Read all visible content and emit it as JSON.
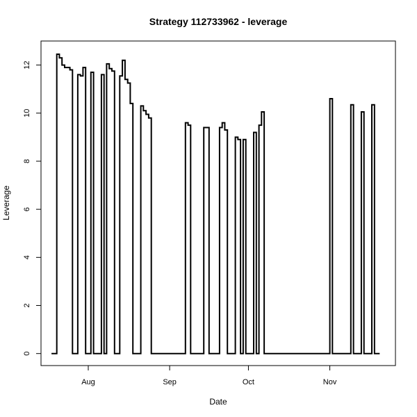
{
  "chart_data": {
    "type": "line",
    "title": "Strategy 112733962 - leverage",
    "xlabel": "Date",
    "ylabel": "Leverage",
    "xlim": [
      "2014-07-14",
      "2014-11-26"
    ],
    "ylim": [
      -0.5,
      13.0
    ],
    "x_ticks": [
      {
        "label": "Aug",
        "date": "2014-08-01"
      },
      {
        "label": "Sep",
        "date": "2014-09-01"
      },
      {
        "label": "Oct",
        "date": "2014-10-01"
      },
      {
        "label": "Nov",
        "date": "2014-11-01"
      }
    ],
    "y_ticks": [
      0,
      2,
      4,
      6,
      8,
      10,
      12
    ],
    "step": "post",
    "series": [
      {
        "points": [
          [
            "2014-07-18",
            0
          ],
          [
            "2014-07-20",
            12.45
          ],
          [
            "2014-07-21",
            12.3
          ],
          [
            "2014-07-22",
            12.0
          ],
          [
            "2014-07-23",
            11.9
          ],
          [
            "2014-07-25",
            11.8
          ],
          [
            "2014-07-26",
            0
          ],
          [
            "2014-07-28",
            11.6
          ],
          [
            "2014-07-29",
            11.55
          ],
          [
            "2014-07-30",
            11.9
          ],
          [
            "2014-07-31",
            0
          ],
          [
            "2014-08-02",
            11.7
          ],
          [
            "2014-08-03",
            0
          ],
          [
            "2014-08-06",
            11.6
          ],
          [
            "2014-08-07",
            0
          ],
          [
            "2014-08-08",
            12.05
          ],
          [
            "2014-08-09",
            11.85
          ],
          [
            "2014-08-10",
            11.75
          ],
          [
            "2014-08-11",
            0
          ],
          [
            "2014-08-13",
            11.55
          ],
          [
            "2014-08-14",
            12.2
          ],
          [
            "2014-08-15",
            11.4
          ],
          [
            "2014-08-16",
            11.25
          ],
          [
            "2014-08-17",
            10.4
          ],
          [
            "2014-08-18",
            0
          ],
          [
            "2014-08-21",
            10.3
          ],
          [
            "2014-08-22",
            10.1
          ],
          [
            "2014-08-23",
            9.95
          ],
          [
            "2014-08-24",
            9.8
          ],
          [
            "2014-08-25",
            0
          ],
          [
            "2014-09-07",
            9.6
          ],
          [
            "2014-09-08",
            9.5
          ],
          [
            "2014-09-09",
            0
          ],
          [
            "2014-09-14",
            9.4
          ],
          [
            "2014-09-16",
            0
          ],
          [
            "2014-09-20",
            9.4
          ],
          [
            "2014-09-21",
            9.6
          ],
          [
            "2014-09-22",
            9.3
          ],
          [
            "2014-09-23",
            0
          ],
          [
            "2014-09-26",
            9.0
          ],
          [
            "2014-09-27",
            8.9
          ],
          [
            "2014-09-28",
            0
          ],
          [
            "2014-09-29",
            8.9
          ],
          [
            "2014-09-30",
            0
          ],
          [
            "2014-10-03",
            9.2
          ],
          [
            "2014-10-04",
            0
          ],
          [
            "2014-10-05",
            9.5
          ],
          [
            "2014-10-06",
            10.05
          ],
          [
            "2014-10-07",
            0
          ],
          [
            "2014-11-01",
            10.6
          ],
          [
            "2014-11-02",
            0
          ],
          [
            "2014-11-09",
            10.35
          ],
          [
            "2014-11-10",
            0
          ],
          [
            "2014-11-13",
            10.05
          ],
          [
            "2014-11-14",
            0
          ],
          [
            "2014-11-17",
            10.35
          ],
          [
            "2014-11-18",
            0
          ],
          [
            "2014-11-20",
            0
          ]
        ]
      }
    ]
  }
}
